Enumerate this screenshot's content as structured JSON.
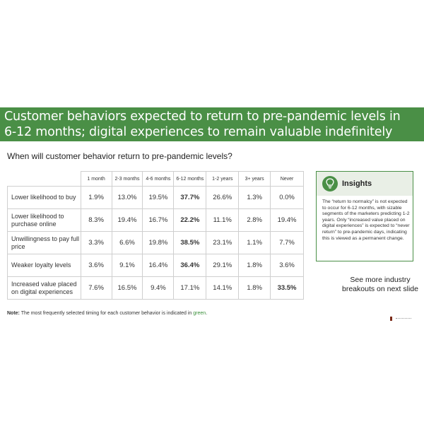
{
  "banner": {
    "line1": "Customer behaviors expected to return to pre-pandemic levels in",
    "line2": "6-12 months; digital experiences to remain valuable indefinitely"
  },
  "subtitle": "When will customer behavior return to pre-pandemic levels?",
  "table": {
    "columns": [
      "1 month",
      "2-3 months",
      "4-6 months",
      "6-12 months",
      "1-2 years",
      "3+ years",
      "Never"
    ],
    "rows": [
      {
        "label": "Lower likelihood to buy",
        "values": [
          "1.9%",
          "13.0%",
          "19.5%",
          "37.7%",
          "26.6%",
          "1.3%",
          "0.0%"
        ],
        "highlight_index": 3
      },
      {
        "label": "Lower likelihood to purchase online",
        "values": [
          "8.3%",
          "19.4%",
          "16.7%",
          "22.2%",
          "11.1%",
          "2.8%",
          "19.4%"
        ],
        "highlight_index": 3
      },
      {
        "label": "Unwillingness to pay full price",
        "values": [
          "3.3%",
          "6.6%",
          "19.8%",
          "38.5%",
          "23.1%",
          "1.1%",
          "7.7%"
        ],
        "highlight_index": 3
      },
      {
        "label": "Weaker loyalty levels",
        "values": [
          "3.6%",
          "9.1%",
          "16.4%",
          "36.4%",
          "29.1%",
          "1.8%",
          "3.6%"
        ],
        "highlight_index": 3
      },
      {
        "label": "Increased value placed on digital experiences",
        "values": [
          "7.6%",
          "16.5%",
          "9.4%",
          "17.1%",
          "14.1%",
          "1.8%",
          "33.5%"
        ],
        "highlight_index": 6
      }
    ]
  },
  "note": {
    "bold": "Note:",
    "text": " The most frequently selected timing for each customer behavior is indicated in ",
    "green_word": "green",
    "end": "."
  },
  "insights": {
    "title": "Insights",
    "icon": "lightbulb-icon",
    "body": "The “return to normalcy” is not expected to occur for 6-12 months, with sizable segments of the marketers predicting 1-2 years. Only “increased value placed on digital experiences” is expected to “never return” to pre-pandemic days, indicating this is viewed as a permanent change."
  },
  "see_more": "See more industry breakouts on next slide",
  "colors": {
    "brand_green": "#4a8f46",
    "highlight_green": "#3a8f3a"
  }
}
